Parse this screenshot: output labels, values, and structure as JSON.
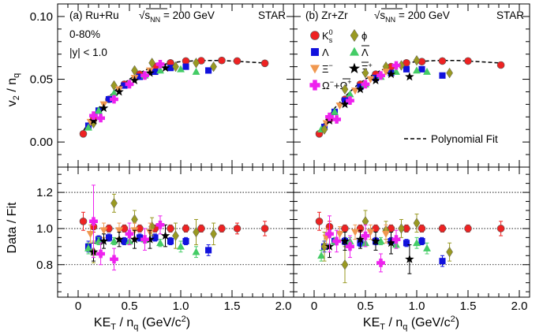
{
  "chart_data": {
    "type": "scatter",
    "experiment": "STAR",
    "energy_label": "s",
    "energy_sub": "NN",
    "energy_value": "= 200 GeV",
    "xlabel": "KE",
    "xlabel_sub": "T",
    "xlabel_rest": "/ n",
    "xlabel_sub2": "q",
    "xlabel_units": "(GeV/c",
    "xlabel_pow": "2",
    "xlabel_close": ")",
    "ylabel_top": "v",
    "ylabel_top_sub": "2",
    "ylabel_top_rest": "/ n",
    "ylabel_top_sub2": "q",
    "ylabel_bottom": "Data / Fit",
    "xlim": [
      -0.2,
      2.1
    ],
    "ylim_top": [
      -0.02,
      0.11
    ],
    "ylim_bottom": [
      0.62,
      1.34
    ],
    "x_ticks": [
      "0",
      "0.5",
      "1.0",
      "1.5",
      "2.0"
    ],
    "y_ticks_top": [
      "0.00",
      "0.05",
      "0.10"
    ],
    "y_ticks_bottom": [
      "0.8",
      "1.0",
      "1.2"
    ],
    "reference_lines_bottom": [
      0.8,
      1.0,
      1.2
    ],
    "fit_label": "Polynomial Fit",
    "fit_points": [
      [
        0.02,
        0.005
      ],
      [
        0.1,
        0.015
      ],
      [
        0.2,
        0.027
      ],
      [
        0.3,
        0.036
      ],
      [
        0.4,
        0.044
      ],
      [
        0.5,
        0.05
      ],
      [
        0.6,
        0.055
      ],
      [
        0.7,
        0.059
      ],
      [
        0.8,
        0.061
      ],
      [
        0.9,
        0.063
      ],
      [
        1.0,
        0.064
      ],
      [
        1.2,
        0.065
      ],
      [
        1.4,
        0.065
      ],
      [
        1.6,
        0.064
      ],
      [
        1.8,
        0.063
      ],
      [
        1.82,
        0.0628
      ]
    ],
    "legend": {
      "K0s": {
        "base": "K",
        "sub": "s",
        "sup": "0"
      },
      "phi": "ϕ",
      "Lambda": "Λ",
      "AntiLambda": "Λ",
      "Xi": "Ξ",
      "Xi_charge": "−",
      "AntiXi": "Ξ",
      "AntiXi_charge": "+",
      "Omega": "Ω",
      "Omega_charge": "−",
      "plus": "+",
      "AntiOmega": "Ω",
      "AntiOmega_charge": "+"
    },
    "panels": [
      {
        "id": "ru",
        "label": "(a) Ru+Ru",
        "centrality": "0-80%",
        "rapidity": "|y| < 1.0",
        "species": {
          "k0s": {
            "color": "#ee2222",
            "x": [
              0.05,
              0.15,
              0.3,
              0.45,
              0.6,
              0.75,
              0.9,
              1.05,
              1.2,
              1.4,
              1.55,
              1.82
            ],
            "y": [
              0.0065,
              0.018,
              0.034,
              0.046,
              0.054,
              0.06,
              0.063,
              0.0645,
              0.0648,
              0.065,
              0.0645,
              0.0627
            ],
            "ratio": [
              1.04,
              1.01,
              1.0,
              1.0,
              1.0,
              1.0,
              1.0,
              1.0,
              1.0,
              1.0,
              1.0,
              1.0
            ],
            "err": [
              0.05,
              0.03,
              0.02,
              0.02,
              0.02,
              0.02,
              0.02,
              0.02,
              0.02,
              0.02,
              0.03,
              0.04
            ]
          },
          "lambda": {
            "color": "#1111dd",
            "x": [
              0.1,
              0.2,
              0.3,
              0.45,
              0.6,
              0.75,
              0.9,
              1.05,
              1.27
            ],
            "y": [
              0.013,
              0.025,
              0.034,
              0.045,
              0.052,
              0.056,
              0.059,
              0.06,
              0.057
            ],
            "ratio": [
              0.9,
              0.94,
              0.95,
              0.93,
              0.95,
              0.95,
              0.93,
              0.93,
              0.88
            ],
            "err": [
              0.03,
              0.02,
              0.02,
              0.02,
              0.02,
              0.02,
              0.02,
              0.02,
              0.03
            ]
          },
          "antilambda": {
            "color": "#44cc66",
            "x": [
              0.1,
              0.2,
              0.35,
              0.5,
              0.65,
              0.8,
              1.0,
              1.15
            ],
            "y": [
              0.0115,
              0.025,
              0.039,
              0.047,
              0.053,
              0.057,
              0.058,
              0.056
            ],
            "ratio": [
              0.89,
              0.93,
              0.93,
              0.93,
              0.94,
              0.92,
              0.9,
              0.87
            ],
            "err": [
              0.03,
              0.02,
              0.02,
              0.02,
              0.02,
              0.02,
              0.03,
              0.03
            ]
          },
          "phi": {
            "color": "#999922",
            "x": [
              0.15,
              0.35,
              0.55,
              0.72,
              0.95,
              1.15,
              1.32
            ],
            "y": [
              0.015,
              0.045,
              0.057,
              0.063,
              0.06,
              0.063,
              0.06
            ],
            "ratio": [
              0.87,
              1.14,
              1.05,
              1.01,
              0.96,
              0.98,
              0.97
            ],
            "err": [
              0.06,
              0.05,
              0.05,
              0.05,
              0.07,
              0.07,
              0.06
            ]
          },
          "xi": {
            "color": "#f09850",
            "x": [
              0.12,
              0.25,
              0.4,
              0.55,
              0.7
            ],
            "y": [
              0.016,
              0.03,
              0.042,
              0.051,
              0.057
            ],
            "ratio": [
              0.97,
              0.99,
              0.99,
              0.99,
              0.98
            ],
            "err": [
              0.05,
              0.04,
              0.04,
              0.04,
              0.05
            ]
          },
          "antixi": {
            "color": "#000000",
            "x": [
              0.15,
              0.25,
              0.4,
              0.55,
              0.7,
              0.85
            ],
            "y": [
              0.017,
              0.027,
              0.04,
              0.049,
              0.055,
              0.059
            ],
            "ratio": [
              0.87,
              0.93,
              0.94,
              0.94,
              0.94,
              0.96
            ],
            "err": [
              0.05,
              0.04,
              0.04,
              0.05,
              0.05,
              0.06
            ]
          },
          "omega": {
            "color": "#ee22ee",
            "x": [
              0.15,
              0.22,
              0.35,
              0.5,
              0.65,
              0.8
            ],
            "y": [
              0.021,
              0.019,
              0.034,
              0.046,
              0.053,
              0.062
            ],
            "ratio": [
              1.04,
              0.86,
              0.83,
              0.97,
              0.94,
              1.02
            ],
            "err": [
              0.2,
              0.06,
              0.06,
              0.06,
              0.06,
              0.05
            ]
          }
        }
      },
      {
        "id": "zr",
        "label": "(b) Zr+Zr",
        "centrality": "",
        "rapidity": "",
        "species": {
          "k0s": {
            "color": "#ee2222",
            "x": [
              0.05,
              0.15,
              0.3,
              0.45,
              0.6,
              0.75,
              0.9,
              1.05,
              1.25,
              1.5,
              1.82
            ],
            "y": [
              0.0065,
              0.018,
              0.034,
              0.046,
              0.054,
              0.06,
              0.063,
              0.064,
              0.0645,
              0.0645,
              0.0613
            ],
            "ratio": [
              1.04,
              1.01,
              1.0,
              1.0,
              1.0,
              1.0,
              1.0,
              1.0,
              1.0,
              1.0,
              1.0
            ],
            "err": [
              0.05,
              0.03,
              0.02,
              0.02,
              0.02,
              0.02,
              0.02,
              0.02,
              0.02,
              0.02,
              0.04
            ]
          },
          "lambda": {
            "color": "#1111dd",
            "x": [
              0.1,
              0.2,
              0.3,
              0.45,
              0.6,
              0.75,
              0.9,
              1.05,
              1.25
            ],
            "y": [
              0.012,
              0.024,
              0.033,
              0.044,
              0.051,
              0.055,
              0.058,
              0.058,
              0.053
            ],
            "ratio": [
              0.9,
              0.93,
              0.93,
              0.92,
              0.93,
              0.93,
              0.92,
              0.93,
              0.82
            ],
            "err": [
              0.03,
              0.02,
              0.02,
              0.02,
              0.02,
              0.02,
              0.02,
              0.02,
              0.03
            ]
          },
          "antilambda": {
            "color": "#44cc66",
            "x": [
              0.07,
              0.2,
              0.35,
              0.5,
              0.65,
              0.8,
              1.0,
              1.1
            ],
            "y": [
              0.01,
              0.024,
              0.038,
              0.046,
              0.052,
              0.056,
              0.057,
              0.056
            ],
            "ratio": [
              0.85,
              0.93,
              0.93,
              0.92,
              0.93,
              0.91,
              0.92,
              0.89
            ],
            "err": [
              0.03,
              0.02,
              0.02,
              0.02,
              0.02,
              0.02,
              0.03,
              0.03
            ]
          },
          "phi": {
            "color": "#999922",
            "x": [
              0.1,
              0.3,
              0.5,
              0.7,
              0.85,
              1.0,
              1.32
            ],
            "y": [
              0.01,
              0.042,
              0.055,
              0.06,
              0.061,
              0.065,
              0.055
            ],
            "ratio": [
              0.9,
              0.8,
              1.04,
              0.99,
              1.0,
              1.03,
              0.87
            ],
            "err": [
              0.08,
              0.1,
              0.06,
              0.05,
              0.05,
              0.05,
              0.05
            ]
          },
          "xi": {
            "color": "#f09850",
            "x": [
              0.12,
              0.25,
              0.4,
              0.55,
              0.7
            ],
            "y": [
              0.015,
              0.029,
              0.041,
              0.05,
              0.056
            ],
            "ratio": [
              0.95,
              0.97,
              0.98,
              0.98,
              0.97
            ],
            "err": [
              0.05,
              0.04,
              0.04,
              0.04,
              0.05
            ]
          },
          "antixi": {
            "color": "#000000",
            "x": [
              0.15,
              0.3,
              0.45,
              0.6,
              0.75,
              0.93
            ],
            "y": [
              0.017,
              0.03,
              0.042,
              0.049,
              0.054,
              0.052
            ],
            "ratio": [
              0.9,
              0.93,
              0.94,
              0.93,
              0.92,
              0.83
            ],
            "err": [
              0.06,
              0.05,
              0.05,
              0.05,
              0.06,
              0.08
            ]
          },
          "omega": {
            "color": "#ee22ee",
            "x": [
              0.15,
              0.22,
              0.35,
              0.5,
              0.65,
              0.8
            ],
            "y": [
              0.02,
              0.018,
              0.033,
              0.046,
              0.053,
              0.061
            ],
            "ratio": [
              0.97,
              0.93,
              0.9,
              0.96,
              0.81,
              0.94
            ],
            "err": [
              0.1,
              0.06,
              0.06,
              0.06,
              0.05,
              0.05
            ]
          }
        }
      }
    ]
  }
}
